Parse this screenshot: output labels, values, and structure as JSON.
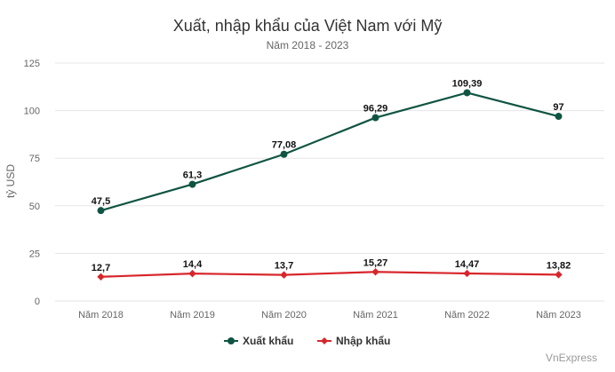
{
  "chart_data": {
    "type": "line",
    "title": "Xuất, nhập khẩu của Việt Nam với Mỹ",
    "subtitle": "Năm 2018 - 2023",
    "ylabel": "tỷ USD",
    "xlabel": "",
    "ylim": [
      0,
      125
    ],
    "yticks": [
      0,
      25,
      50,
      75,
      100,
      125
    ],
    "categories": [
      "Năm 2018",
      "Năm 2019",
      "Năm 2020",
      "Năm 2021",
      "Năm 2022",
      "Năm 2023"
    ],
    "grid": true,
    "legend_position": "bottom-center",
    "series": [
      {
        "name": "Xuất khẩu",
        "color": "#0f5442",
        "marker": "circle",
        "values": [
          47.5,
          61.3,
          77.08,
          96.29,
          109.39,
          97
        ],
        "labels": [
          "47,5",
          "61,3",
          "77,08",
          "96,29",
          "109,39",
          "97"
        ]
      },
      {
        "name": "Nhập khẩu",
        "color": "#d7262b",
        "marker": "diamond",
        "values": [
          12.7,
          14.4,
          13.7,
          15.27,
          14.47,
          13.82
        ],
        "labels": [
          "12,7",
          "14,4",
          "13,7",
          "15,27",
          "14,47",
          "13,82"
        ]
      }
    ]
  },
  "credit": "VnExpress"
}
